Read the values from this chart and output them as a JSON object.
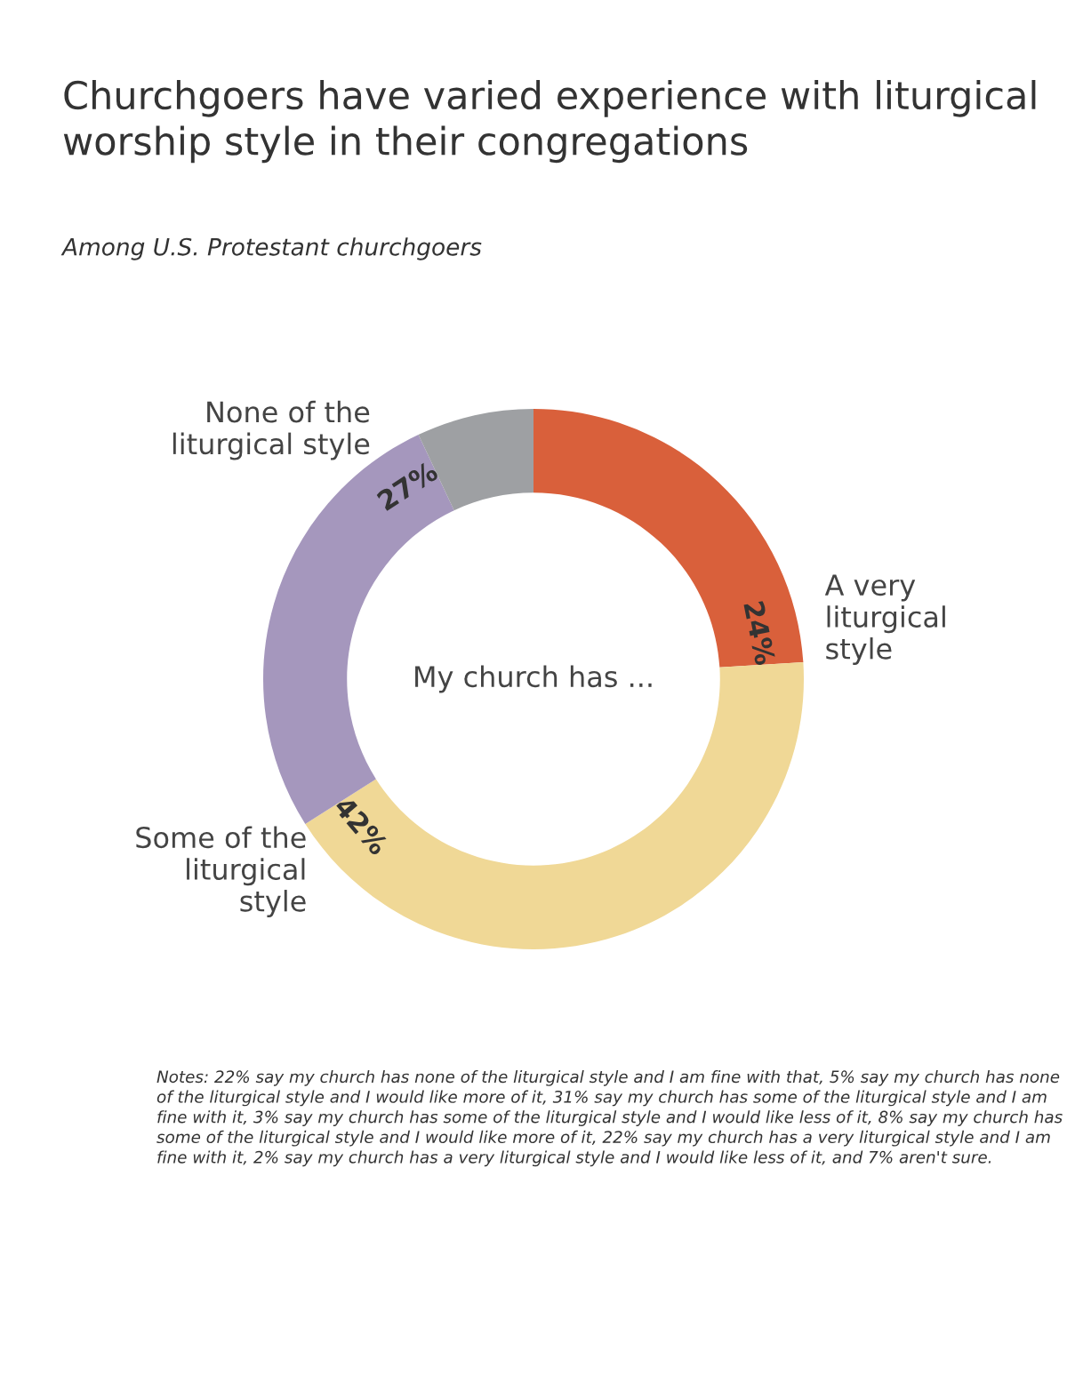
{
  "chart_data": {
    "type": "donut",
    "title": "Churchgoers have varied experience with liturgical\nworship style in their congregations",
    "subtitle": "Among U.S. Protestant churchgoers",
    "categories": [
      "A very\nliturgical\nstyle",
      "Some of the\nliturgical\nstyle",
      "None of the\nliturgical style",
      null
    ],
    "values": [
      24,
      42,
      27,
      7
    ],
    "value_labels": [
      "24%",
      "42%",
      "27%",
      null
    ],
    "colors": [
      "#d9603b",
      "#f0d896",
      "#a597bd",
      "#9ea0a3"
    ],
    "annotations": [
      "My church has ...",
      "Notes: 22% say my church has none of the liturgical style and I am fine with that, 5% say my church has none of the liturgical style and I would like more of it, 31% say my church has some of the liturgical style and I am fine with it, 3% say my church has some of the liturgical style and I would like less of it, 8% say my church has some of the liturgical style and I would like more of it, 22% say my church has a very liturgical style and I am fine with it, 2% say my church has a very liturgical style and I would like less of it, and 7% aren't sure."
    ]
  }
}
